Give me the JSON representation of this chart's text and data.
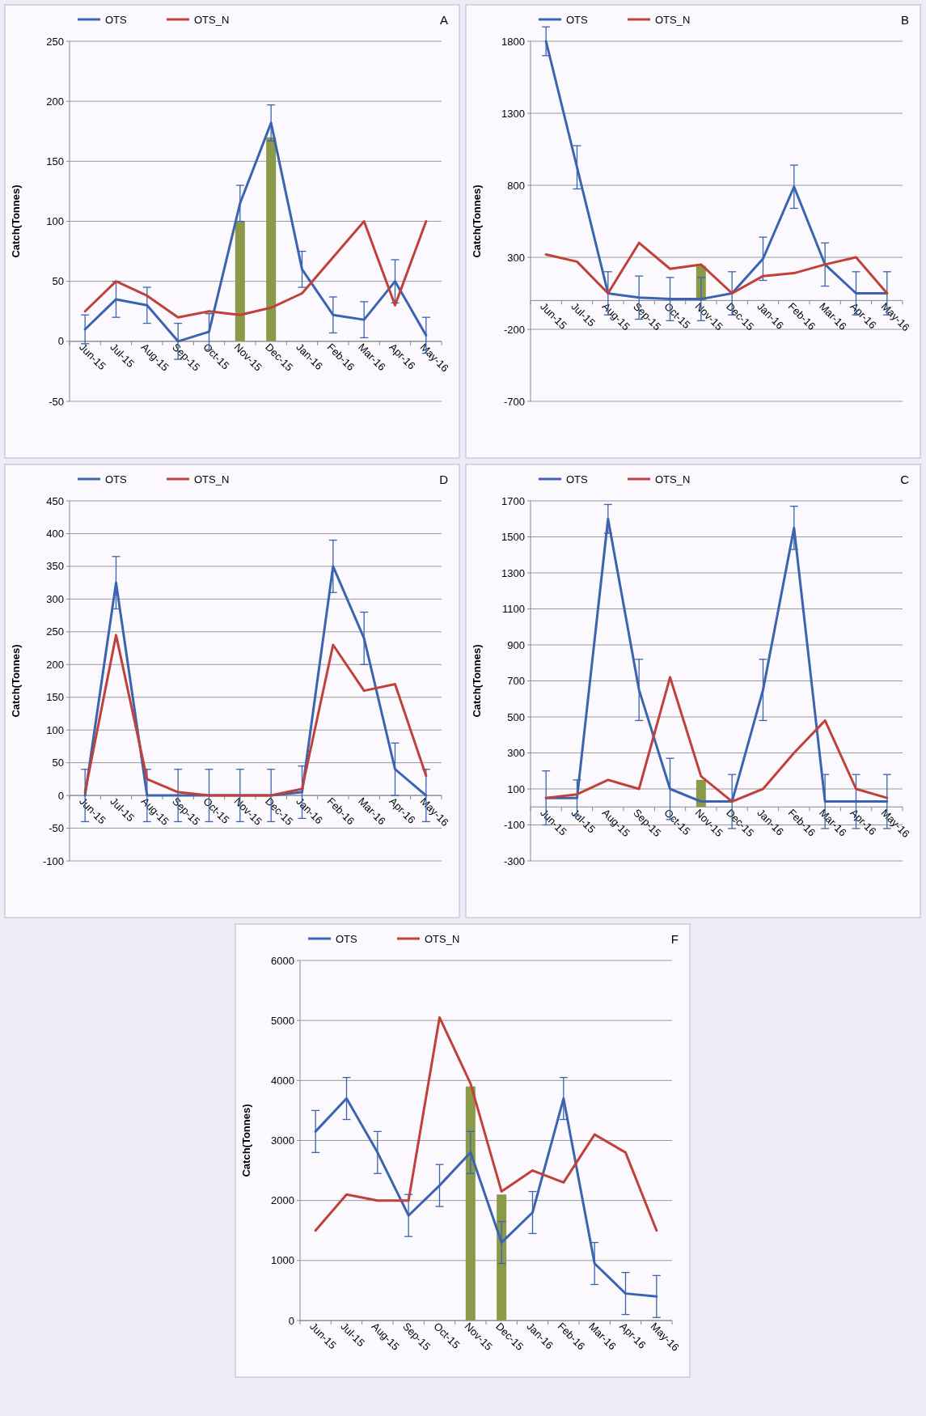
{
  "chart_data": [
    {
      "type": "line",
      "title": "A",
      "ylabel": "Catch(Tonnes)",
      "categories": [
        "Jun-15",
        "Jul-15",
        "Aug-15",
        "Sep-15",
        "Oct-15",
        "Nov-15",
        "Dec-15",
        "Jan-16",
        "Feb-16",
        "Mar-16",
        "Apr-16",
        "May-16"
      ],
      "ylim": [
        -50,
        250
      ],
      "yticks": [
        -50,
        0,
        50,
        100,
        150,
        200,
        250
      ],
      "grid": "y",
      "legend": "top left",
      "series": [
        {
          "type": "bar",
          "color": "#8a9a48",
          "values": [
            null,
            null,
            null,
            null,
            null,
            100,
            170,
            null,
            null,
            null,
            null,
            null
          ]
        },
        {
          "name": "OTS",
          "color": "#3a64b0",
          "values": [
            10,
            35,
            30,
            0,
            8,
            115,
            182,
            60,
            22,
            18,
            50,
            5
          ],
          "errors": [
            12,
            15,
            15,
            15,
            15,
            15,
            15,
            15,
            15,
            15,
            18,
            15
          ]
        },
        {
          "name": "OTS_N",
          "color": "#c0413a",
          "values": [
            25,
            50,
            38,
            20,
            25,
            22,
            28,
            40,
            70,
            100,
            30,
            100
          ]
        }
      ]
    },
    {
      "type": "line",
      "title": "B",
      "ylabel": "Catch(Tonnes)",
      "categories": [
        "Jun-15",
        "Jul-15",
        "Aug-15",
        "Sep-15",
        "Oct-15",
        "Nov-15",
        "Dec-15",
        "Jan-16",
        "Feb-16",
        "Mar-16",
        "Apr-16",
        "May-16"
      ],
      "ylim": [
        -700,
        1800
      ],
      "yticks": [
        -700,
        -200,
        300,
        800,
        1300,
        1800
      ],
      "grid": "y",
      "legend": "top left",
      "series": [
        {
          "type": "bar",
          "color": "#8a9a48",
          "values": [
            null,
            null,
            null,
            null,
            null,
            240,
            null,
            null,
            null,
            null,
            null,
            null
          ]
        },
        {
          "name": "OTS",
          "color": "#3a64b0",
          "values": [
            1800,
            925,
            50,
            20,
            10,
            10,
            50,
            290,
            790,
            250,
            50,
            50
          ],
          "errors": [
            100,
            150,
            150,
            150,
            150,
            150,
            150,
            150,
            150,
            150,
            150,
            150
          ]
        },
        {
          "name": "OTS_N",
          "color": "#c0413a",
          "values": [
            320,
            270,
            50,
            400,
            220,
            250,
            50,
            170,
            190,
            250,
            300,
            50
          ]
        }
      ]
    },
    {
      "type": "line",
      "title": "C",
      "ylabel": "Catch(Tonnes)",
      "categories": [
        "Jun-15",
        "Jul-15",
        "Aug-15",
        "Sep-15",
        "Oct-15",
        "Nov-15",
        "Dec-15",
        "Jan-16",
        "Feb-16",
        "Mar-16",
        "Apr-16",
        "May-16"
      ],
      "ylim": [
        -300,
        1700
      ],
      "yticks": [
        -300,
        -100,
        100,
        300,
        500,
        700,
        900,
        1100,
        1300,
        1500,
        1700
      ],
      "grid": "y",
      "legend": "top left",
      "series": [
        {
          "type": "bar",
          "color": "#8a9a48",
          "values": [
            null,
            null,
            null,
            null,
            null,
            150,
            null,
            null,
            null,
            null,
            null,
            null
          ]
        },
        {
          "name": "OTS",
          "color": "#3a64b0",
          "values": [
            50,
            50,
            1600,
            650,
            100,
            30,
            30,
            650,
            1550,
            30,
            30,
            30
          ],
          "errors": [
            150,
            100,
            80,
            170,
            170,
            null,
            150,
            170,
            120,
            150,
            150,
            150
          ]
        },
        {
          "name": "OTS_N",
          "color": "#c0413a",
          "values": [
            50,
            70,
            150,
            100,
            720,
            170,
            30,
            100,
            300,
            480,
            100,
            50
          ]
        }
      ]
    },
    {
      "type": "line",
      "title": "D",
      "ylabel": "Catch(Tonnes)",
      "categories": [
        "Jun-15",
        "Jul-15",
        "Aug-15",
        "Sep-15",
        "Oct-15",
        "Nov-15",
        "Dec-15",
        "Jan-16",
        "Feb-16",
        "Mar-16",
        "Apr-16",
        "May-16"
      ],
      "ylim": [
        -100,
        450
      ],
      "yticks": [
        -100,
        -50,
        0,
        50,
        100,
        150,
        200,
        250,
        300,
        350,
        400,
        450
      ],
      "grid": "y",
      "legend": "top left",
      "series": [
        {
          "name": "OTS",
          "color": "#3a64b0",
          "values": [
            0,
            325,
            0,
            0,
            0,
            0,
            0,
            5,
            350,
            240,
            40,
            0
          ],
          "errors": [
            40,
            40,
            40,
            40,
            40,
            40,
            40,
            40,
            40,
            40,
            40,
            40
          ]
        },
        {
          "name": "OTS_N",
          "color": "#c0413a",
          "values": [
            5,
            245,
            25,
            5,
            0,
            0,
            0,
            10,
            230,
            160,
            170,
            30
          ]
        }
      ]
    },
    {
      "type": "line",
      "title": "F",
      "ylabel": "Catch(Tonnes)",
      "categories": [
        "Jun-15",
        "Jul-15",
        "Aug-15",
        "Sep-15",
        "Oct-15",
        "Nov-15",
        "Dec-15",
        "Jan-16",
        "Feb-16",
        "Mar-16",
        "Apr-16",
        "May-16"
      ],
      "ylim": [
        0,
        6000
      ],
      "yticks": [
        0,
        1000,
        2000,
        3000,
        4000,
        5000,
        6000
      ],
      "grid": "y",
      "legend": "top left",
      "series": [
        {
          "type": "bar",
          "color": "#8a9a48",
          "values": [
            null,
            null,
            null,
            null,
            null,
            3900,
            2100,
            null,
            null,
            null,
            null,
            null
          ]
        },
        {
          "name": "OTS",
          "color": "#3a64b0",
          "values": [
            3150,
            3700,
            2800,
            1750,
            2250,
            2800,
            1300,
            1800,
            3700,
            950,
            450,
            400
          ],
          "errors": [
            350,
            350,
            350,
            350,
            350,
            350,
            350,
            350,
            350,
            350,
            350,
            350
          ]
        },
        {
          "name": "OTS_N",
          "color": "#c0413a",
          "values": [
            1500,
            2100,
            2000,
            2000,
            5050,
            3950,
            2150,
            2500,
            2300,
            3100,
            2800,
            1500
          ]
        }
      ]
    }
  ]
}
